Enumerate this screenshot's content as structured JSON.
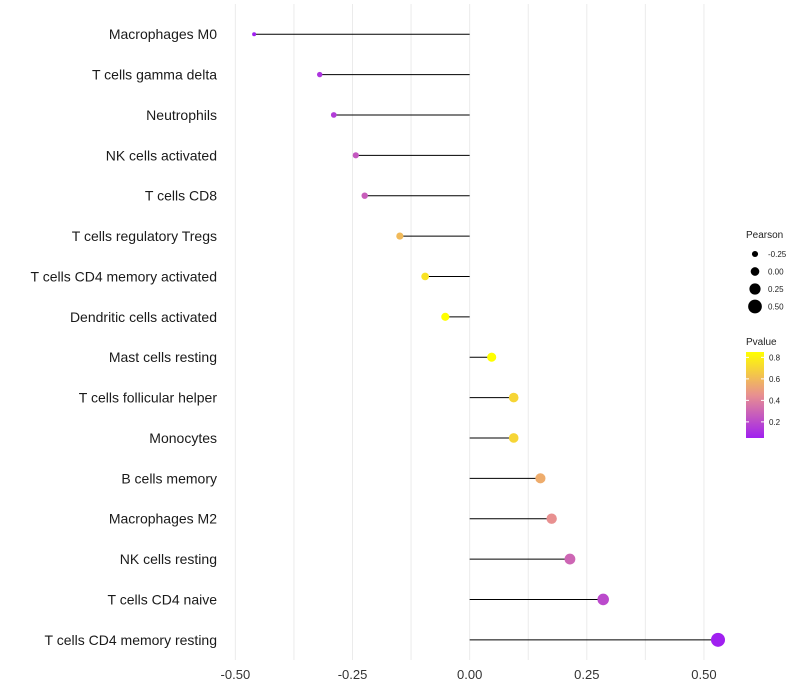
{
  "chart_data": {
    "type": "lollipop",
    "categories": [
      "Macrophages M0",
      "T cells gamma delta",
      "Neutrophils",
      "NK cells activated",
      "T cells CD8",
      "T cells regulatory  Tregs ",
      "T cells CD4 memory activated",
      "Dendritic cells activated",
      "Mast cells resting",
      "T cells follicular helper",
      "Monocytes",
      "B cells memory",
      "Macrophages M2",
      "NK cells resting",
      "T cells CD4 naive",
      "T cells CD4 memory resting"
    ],
    "values": [
      -0.46,
      -0.32,
      -0.29,
      -0.243,
      -0.224,
      -0.149,
      -0.095,
      -0.052,
      0.047,
      0.094,
      0.094,
      0.151,
      0.175,
      0.214,
      0.285,
      0.53
    ],
    "pvalues": [
      0.05,
      0.12,
      0.15,
      0.25,
      0.27,
      0.6,
      0.75,
      0.85,
      0.85,
      0.7,
      0.7,
      0.55,
      0.45,
      0.3,
      0.2,
      0.05
    ],
    "xlim": [
      -0.52,
      0.53
    ],
    "xticks": [
      -0.5,
      -0.25,
      0,
      0.25,
      0.5
    ],
    "xtick_labels": [
      "-0.50",
      "-0.25",
      "0.00",
      "0.25",
      "0.50"
    ],
    "xlabel": "",
    "ylabel": "",
    "grid": true,
    "legend_placement": "right",
    "size_legend": {
      "title": "Pearson",
      "values": [
        -0.25,
        0,
        0.25,
        0.5
      ],
      "labels": [
        "-0.25",
        "0.00",
        "0.25",
        "0.50"
      ]
    },
    "color_legend": {
      "title": "Pvalue",
      "ticks": [
        0.8,
        0.6,
        0.4,
        0.2
      ],
      "labels": [
        "0.8",
        "0.6",
        "0.4",
        "0.2"
      ],
      "low_color": "#a020f0",
      "mid_color": "#e89090",
      "high_color": "#ffff00",
      "range": [
        0.05,
        0.85
      ]
    },
    "segment_color": "#000000",
    "grid_color": "#ebebeb"
  }
}
